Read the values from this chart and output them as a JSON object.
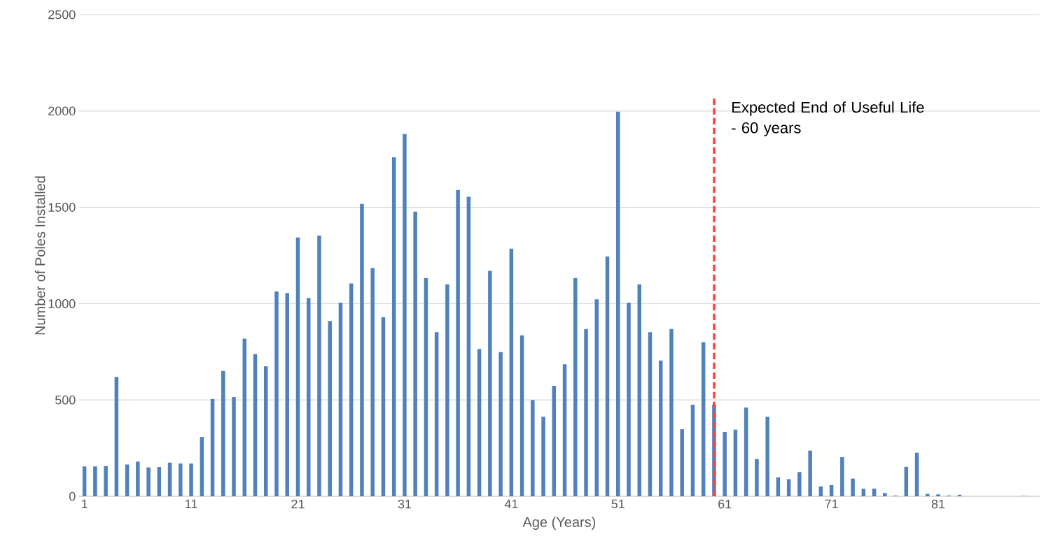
{
  "chart_data": {
    "type": "bar",
    "xlabel": "Age (Years)",
    "ylabel": "Number of Poles Installed",
    "x": [
      1,
      2,
      3,
      4,
      5,
      6,
      7,
      8,
      9,
      10,
      11,
      12,
      13,
      14,
      15,
      16,
      17,
      18,
      19,
      20,
      21,
      22,
      23,
      24,
      25,
      26,
      27,
      28,
      29,
      30,
      31,
      32,
      33,
      34,
      35,
      36,
      37,
      38,
      39,
      40,
      41,
      42,
      43,
      44,
      45,
      46,
      47,
      48,
      49,
      50,
      51,
      52,
      53,
      54,
      55,
      56,
      57,
      58,
      59,
      60,
      61,
      62,
      63,
      64,
      65,
      66,
      67,
      68,
      69,
      70,
      71,
      72,
      73,
      74,
      75,
      76,
      77,
      78,
      79,
      80,
      81,
      82,
      83,
      84,
      85,
      86,
      87,
      88,
      89
    ],
    "values": [
      155,
      155,
      157,
      620,
      165,
      180,
      150,
      152,
      175,
      170,
      170,
      308,
      505,
      650,
      515,
      818,
      738,
      675,
      1063,
      1055,
      1343,
      1030,
      1353,
      910,
      1005,
      1105,
      1518,
      1185,
      930,
      1760,
      1880,
      1478,
      1133,
      852,
      1100,
      1590,
      1555,
      765,
      1170,
      748,
      1285,
      835,
      500,
      413,
      573,
      685,
      1133,
      868,
      1022,
      1245,
      1997,
      1005,
      1100,
      852,
      705,
      868,
      348,
      475,
      800,
      476,
      334,
      346,
      461,
      193,
      413,
      98,
      89,
      126,
      237,
      51,
      58,
      203,
      92,
      39,
      40,
      17,
      4,
      153,
      226,
      12,
      10,
      4,
      8,
      0,
      0,
      0,
      0,
      0,
      2
    ],
    "color": "#4f81bd",
    "xlim": [
      0.5,
      90.5
    ],
    "xticks": [
      1,
      11,
      21,
      31,
      41,
      51,
      61,
      71,
      81
    ],
    "ylim": [
      0,
      2500
    ],
    "yticks": [
      0,
      500,
      1000,
      1500,
      2000,
      2500
    ],
    "grid": "y",
    "ref_lines": [
      {
        "axis": "x",
        "value": 60,
        "label": "Expected End of Useful Life - 60 years",
        "color": "#ff4040",
        "line_style": "dashed"
      }
    ]
  }
}
